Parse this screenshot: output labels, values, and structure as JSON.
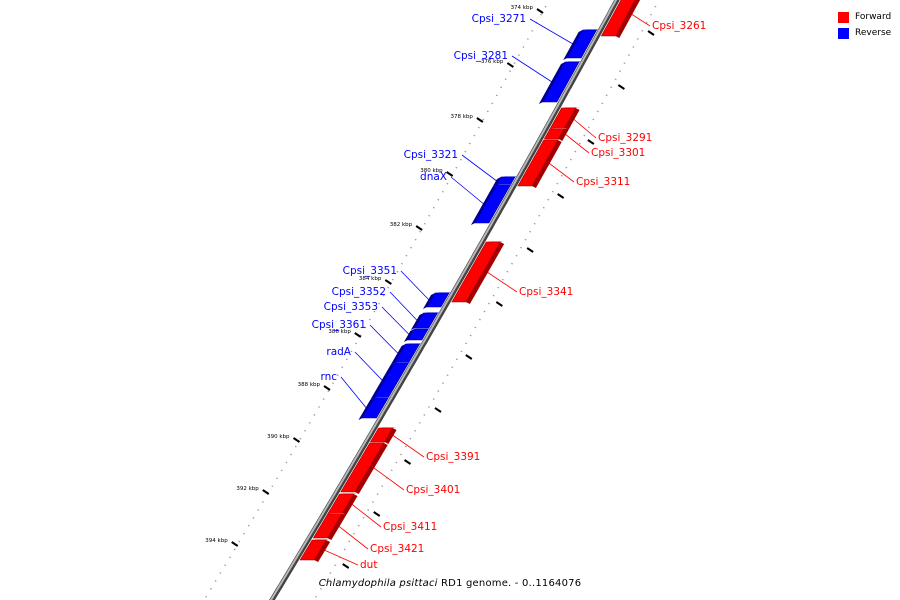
{
  "caption": {
    "organism": "Chlamydophila psittaci",
    "suffix": "RD1 genome. - 0..1164076"
  },
  "legend": [
    {
      "label": "Forward",
      "color": "#ff0000"
    },
    {
      "label": "Reverse",
      "color": "#0000ff"
    }
  ],
  "colors": {
    "forward": "#ff0000",
    "reverse": "#0000ff",
    "backbone": "#777777",
    "tick": "#000000"
  },
  "ticks": [
    "374 kbp",
    "376 kbp",
    "378 kbp",
    "380 kbp",
    "382 kbp",
    "384 kbp",
    "386 kbp",
    "388 kbp",
    "390 kbp",
    "392 kbp",
    "394 kbp"
  ],
  "genes": [
    {
      "label": "Cpsi_3261",
      "strand": "forward"
    },
    {
      "label": "Cpsi_3271",
      "strand": "reverse"
    },
    {
      "label": "Cpsi_3281",
      "strand": "reverse"
    },
    {
      "label": "Cpsi_3291",
      "strand": "forward"
    },
    {
      "label": "Cpsi_3301",
      "strand": "forward"
    },
    {
      "label": "Cpsi_3311",
      "strand": "forward"
    },
    {
      "label": "Cpsi_3321",
      "strand": "reverse"
    },
    {
      "label": "dnaX",
      "strand": "reverse"
    },
    {
      "label": "Cpsi_3341",
      "strand": "forward"
    },
    {
      "label": "Cpsi_3351",
      "strand": "reverse"
    },
    {
      "label": "Cpsi_3352",
      "strand": "reverse"
    },
    {
      "label": "Cpsi_3353",
      "strand": "reverse"
    },
    {
      "label": "Cpsi_3361",
      "strand": "reverse"
    },
    {
      "label": "radA",
      "strand": "reverse"
    },
    {
      "label": "rnc",
      "strand": "reverse"
    },
    {
      "label": "Cpsi_3391",
      "strand": "forward"
    },
    {
      "label": "Cpsi_3401",
      "strand": "forward"
    },
    {
      "label": "Cpsi_3411",
      "strand": "forward"
    },
    {
      "label": "Cpsi_3421",
      "strand": "forward"
    },
    {
      "label": "dut",
      "strand": "forward"
    }
  ]
}
